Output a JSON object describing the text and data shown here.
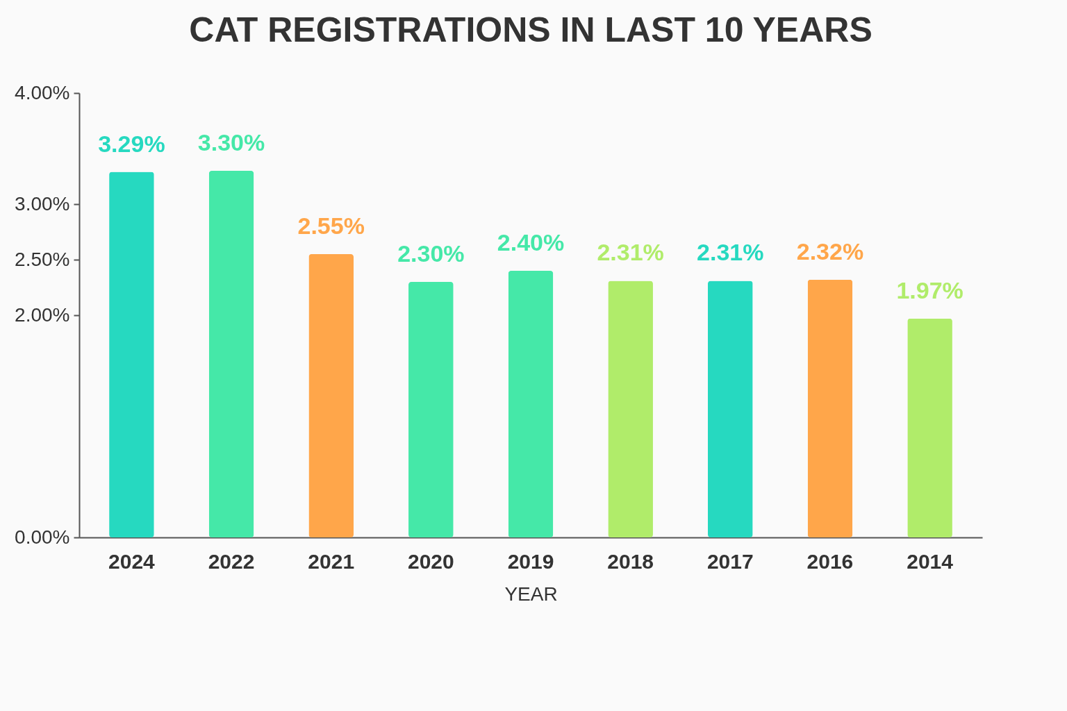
{
  "chart_data": {
    "type": "bar",
    "title": "CAT REGISTRATIONS IN LAST 10 YEARS",
    "xlabel": "YEAR",
    "categories": [
      "2024",
      "2022",
      "2021",
      "2020",
      "2019",
      "2018",
      "2017",
      "2016",
      "2014"
    ],
    "values": [
      3.29,
      3.3,
      2.55,
      2.3,
      2.4,
      2.31,
      2.31,
      2.32,
      1.97
    ],
    "colors": [
      "#26d9c0",
      "#45e8a8",
      "#ffa64a",
      "#45e8a8",
      "#45e8a8",
      "#b0ec6a",
      "#26d9c0",
      "#ffa64a",
      "#b0ec6a"
    ],
    "value_labels": [
      "3.29%",
      "3.30%",
      "2.55%",
      "2.30%",
      "2.40%",
      "2.31%",
      "2.31%",
      "2.32%",
      "1.97%"
    ],
    "ylim": [
      0,
      4
    ],
    "yticks": [
      {
        "value": 0,
        "label": "0.00%"
      },
      {
        "value": 2,
        "label": "2.00%"
      },
      {
        "value": 2.5,
        "label": "2.50%"
      },
      {
        "value": 3,
        "label": "3.00%"
      },
      {
        "value": 4,
        "label": "4.00%"
      }
    ],
    "grid": false
  }
}
